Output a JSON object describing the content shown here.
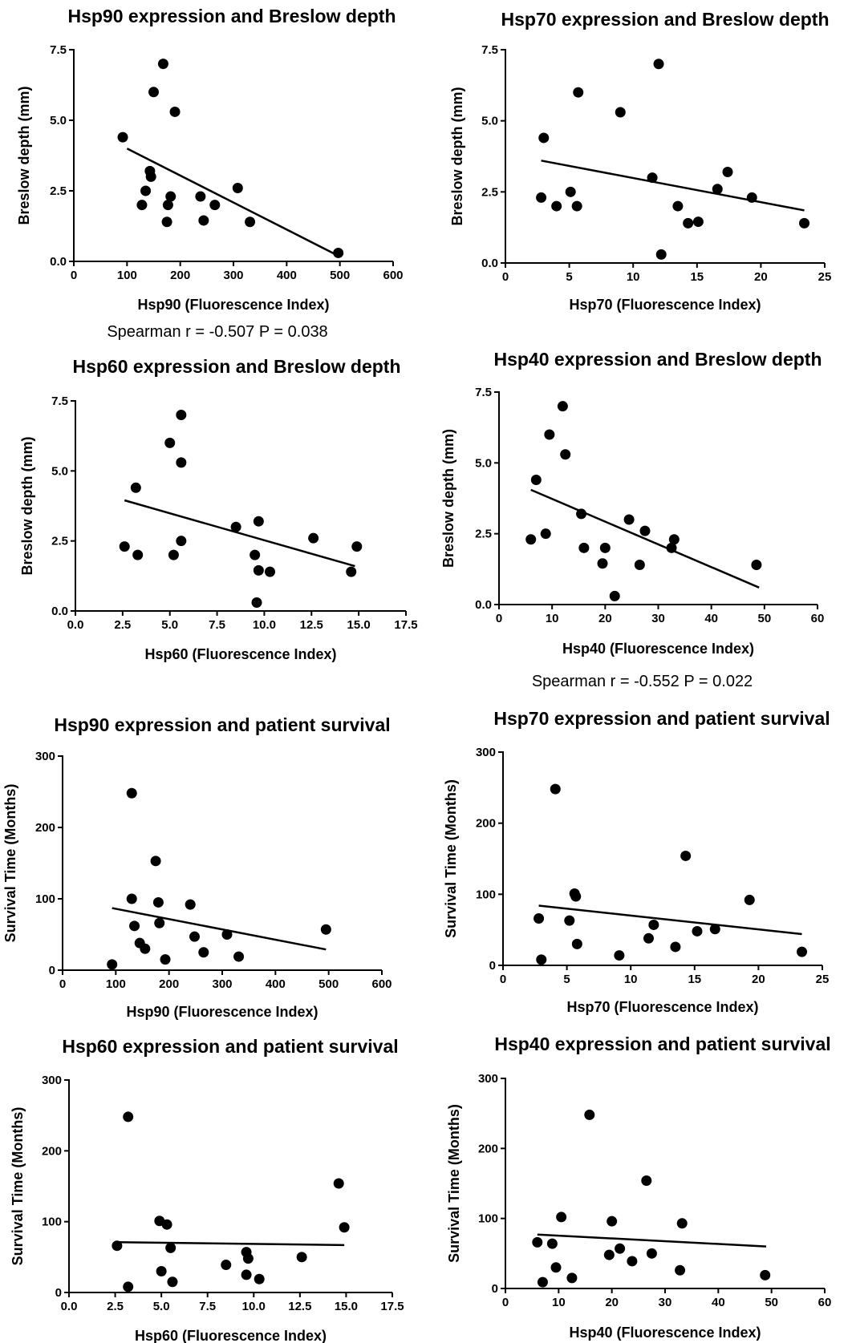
{
  "chart_data": [
    {
      "type": "scatter",
      "title": "Hsp90 expression and Breslow depth",
      "xlabel": "Hsp90 (Fluorescence Index)",
      "ylabel": "Breslow depth (mm)",
      "xlim": [
        0,
        600
      ],
      "ylim": [
        0,
        7.5
      ],
      "xticks": [
        0,
        100,
        200,
        300,
        400,
        500,
        600
      ],
      "yticks": [
        0.0,
        2.5,
        5.0,
        7.5
      ],
      "xtick_labels": [
        "0",
        "100",
        "200",
        "300",
        "400",
        "500",
        "600"
      ],
      "ytick_labels": [
        "0.0",
        "2.5",
        "5.0",
        "7.5"
      ],
      "points": [
        [
          92,
          4.4
        ],
        [
          168,
          7.0
        ],
        [
          150,
          6.0
        ],
        [
          190,
          5.3
        ],
        [
          143,
          3.2
        ],
        [
          145,
          3.0
        ],
        [
          135,
          2.5
        ],
        [
          128,
          2.0
        ],
        [
          182,
          2.3
        ],
        [
          177,
          2.0
        ],
        [
          175,
          1.4
        ],
        [
          238,
          2.3
        ],
        [
          244,
          1.45
        ],
        [
          265,
          2.0
        ],
        [
          308,
          2.6
        ],
        [
          331,
          1.4
        ],
        [
          497,
          0.3
        ]
      ],
      "fit": [
        [
          100,
          4.0
        ],
        [
          497,
          0.2
        ]
      ],
      "annotation": "Spearman r = -0.507 P = 0.038"
    },
    {
      "type": "scatter",
      "title": "Hsp70 expression and Breslow depth",
      "xlabel": "Hsp70 (Fluorescence Index)",
      "ylabel": "Breslow depth (mm)",
      "xlim": [
        0,
        25
      ],
      "ylim": [
        0,
        7.5
      ],
      "xticks": [
        0,
        5,
        10,
        15,
        20,
        25
      ],
      "yticks": [
        0.0,
        2.5,
        5.0,
        7.5
      ],
      "xtick_labels": [
        "0",
        "5",
        "10",
        "15",
        "20",
        "25"
      ],
      "ytick_labels": [
        "0.0",
        "2.5",
        "5.0",
        "7.5"
      ],
      "points": [
        [
          3.0,
          4.4
        ],
        [
          5.7,
          6.0
        ],
        [
          12.0,
          7.0
        ],
        [
          9.0,
          5.3
        ],
        [
          2.8,
          2.3
        ],
        [
          4.0,
          2.0
        ],
        [
          5.1,
          2.5
        ],
        [
          5.6,
          2.0
        ],
        [
          11.5,
          3.0
        ],
        [
          13.5,
          2.0
        ],
        [
          12.2,
          0.3
        ],
        [
          14.3,
          1.4
        ],
        [
          15.1,
          1.45
        ],
        [
          16.6,
          2.6
        ],
        [
          17.4,
          3.2
        ],
        [
          19.3,
          2.3
        ],
        [
          23.4,
          1.4
        ]
      ],
      "fit": [
        [
          2.8,
          3.6
        ],
        [
          23.4,
          1.85
        ]
      ],
      "annotation": ""
    },
    {
      "type": "scatter",
      "title": "Hsp60 expression and Breslow depth",
      "xlabel": "Hsp60 (Fluorescence Index)",
      "ylabel": "Breslow depth (mm)",
      "xlim": [
        0,
        17.5
      ],
      "ylim": [
        0,
        7.5
      ],
      "xticks": [
        0,
        2.5,
        5,
        7.5,
        10,
        12.5,
        15,
        17.5
      ],
      "yticks": [
        0.0,
        2.5,
        5.0,
        7.5
      ],
      "xtick_labels": [
        "0.0",
        "2.5",
        "5.0",
        "7.5",
        "10.0",
        "12.5",
        "15.0",
        "17.5"
      ],
      "ytick_labels": [
        "0.0",
        "2.5",
        "5.0",
        "7.5"
      ],
      "points": [
        [
          3.2,
          4.4
        ],
        [
          5.6,
          7.0
        ],
        [
          5.0,
          6.0
        ],
        [
          5.6,
          5.3
        ],
        [
          2.6,
          2.3
        ],
        [
          3.3,
          2.0
        ],
        [
          5.2,
          2.0
        ],
        [
          5.6,
          2.5
        ],
        [
          8.5,
          3.0
        ],
        [
          9.7,
          3.2
        ],
        [
          9.5,
          2.0
        ],
        [
          9.7,
          1.45
        ],
        [
          10.3,
          1.4
        ],
        [
          9.6,
          0.3
        ],
        [
          12.6,
          2.6
        ],
        [
          14.6,
          1.4
        ],
        [
          14.9,
          2.3
        ]
      ],
      "fit": [
        [
          2.6,
          3.95
        ],
        [
          14.8,
          1.6
        ]
      ],
      "annotation": ""
    },
    {
      "type": "scatter",
      "title": "Hsp40 expression and Breslow depth",
      "xlabel": "Hsp40 (Fluorescence Index)",
      "ylabel": "Breslow depth (mm)",
      "xlim": [
        0,
        60
      ],
      "ylim": [
        0,
        7.5
      ],
      "xticks": [
        0,
        10,
        20,
        30,
        40,
        50,
        60
      ],
      "yticks": [
        0.0,
        2.5,
        5.0,
        7.5
      ],
      "xtick_labels": [
        "0",
        "10",
        "20",
        "30",
        "40",
        "50",
        "60"
      ],
      "ytick_labels": [
        "0.0",
        "2.5",
        "5.0",
        "7.5"
      ],
      "points": [
        [
          7,
          4.4
        ],
        [
          12,
          7.0
        ],
        [
          9.5,
          6.0
        ],
        [
          12.5,
          5.3
        ],
        [
          6,
          2.3
        ],
        [
          8.8,
          2.5
        ],
        [
          15.5,
          3.2
        ],
        [
          16,
          2.0
        ],
        [
          20,
          2.0
        ],
        [
          19.5,
          1.45
        ],
        [
          21.8,
          0.3
        ],
        [
          24.5,
          3.0
        ],
        [
          26.5,
          1.4
        ],
        [
          27.5,
          2.6
        ],
        [
          33,
          2.3
        ],
        [
          32.5,
          2.0
        ],
        [
          48.5,
          1.4
        ]
      ],
      "fit": [
        [
          6,
          4.05
        ],
        [
          49,
          0.6
        ]
      ],
      "annotation": "Spearman r = -0.552 P = 0.022"
    },
    {
      "type": "scatter",
      "title": "Hsp90 expression and patient survival",
      "xlabel": "Hsp90 (Fluorescence Index)",
      "ylabel": "Survival Time (Months)",
      "xlim": [
        0,
        600
      ],
      "ylim": [
        0,
        300
      ],
      "xticks": [
        0,
        100,
        200,
        300,
        400,
        500,
        600
      ],
      "yticks": [
        0,
        100,
        200,
        300
      ],
      "xtick_labels": [
        "0",
        "100",
        "200",
        "300",
        "400",
        "500",
        "600"
      ],
      "ytick_labels": [
        "0",
        "100",
        "200",
        "300"
      ],
      "points": [
        [
          93,
          8
        ],
        [
          130,
          248
        ],
        [
          130,
          100
        ],
        [
          135,
          62
        ],
        [
          145,
          38
        ],
        [
          155,
          30
        ],
        [
          175,
          153
        ],
        [
          180,
          95
        ],
        [
          182,
          66
        ],
        [
          193,
          15
        ],
        [
          240,
          92
        ],
        [
          248,
          47
        ],
        [
          265,
          25
        ],
        [
          309,
          50
        ],
        [
          331,
          19
        ],
        [
          495,
          57
        ]
      ],
      "fit": [
        [
          93,
          87
        ],
        [
          495,
          29
        ]
      ],
      "annotation": ""
    },
    {
      "type": "scatter",
      "title": "Hsp70 expression and patient survival",
      "xlabel": "Hsp70 (Fluorescence Index)",
      "ylabel": "Survival Time (Months)",
      "xlim": [
        0,
        25
      ],
      "ylim": [
        0,
        300
      ],
      "xticks": [
        0,
        5,
        10,
        15,
        20,
        25
      ],
      "yticks": [
        0,
        100,
        200,
        300
      ],
      "xtick_labels": [
        "0",
        "5",
        "10",
        "15",
        "20",
        "25"
      ],
      "ytick_labels": [
        "0",
        "100",
        "200",
        "300"
      ],
      "points": [
        [
          2.8,
          66
        ],
        [
          3.0,
          8
        ],
        [
          4.1,
          248
        ],
        [
          5.2,
          63
        ],
        [
          5.6,
          101
        ],
        [
          5.7,
          97
        ],
        [
          5.8,
          30
        ],
        [
          9.1,
          14
        ],
        [
          11.4,
          38
        ],
        [
          11.8,
          57
        ],
        [
          13.5,
          26
        ],
        [
          14.3,
          154
        ],
        [
          15.2,
          48
        ],
        [
          16.6,
          51
        ],
        [
          19.3,
          92
        ],
        [
          23.4,
          19
        ]
      ],
      "fit": [
        [
          2.8,
          84
        ],
        [
          23.4,
          44
        ]
      ],
      "annotation": ""
    },
    {
      "type": "scatter",
      "title": "Hsp60 expression and patient survival",
      "xlabel": "Hsp60 (Fluorescence Index)",
      "ylabel": "Survival Time (Months)",
      "xlim": [
        0,
        17.5
      ],
      "ylim": [
        0,
        300
      ],
      "xticks": [
        0,
        2.5,
        5,
        7.5,
        10,
        12.5,
        15,
        17.5
      ],
      "yticks": [
        0,
        100,
        200,
        300
      ],
      "xtick_labels": [
        "0.0",
        "2.5",
        "5.0",
        "7.5",
        "10.0",
        "12.5",
        "15.0",
        "17.5"
      ],
      "ytick_labels": [
        "0",
        "100",
        "200",
        "300"
      ],
      "points": [
        [
          2.6,
          66
        ],
        [
          3.2,
          248
        ],
        [
          3.2,
          8
        ],
        [
          4.9,
          101
        ],
        [
          5.3,
          96
        ],
        [
          5.0,
          30
        ],
        [
          5.5,
          63
        ],
        [
          5.6,
          15
        ],
        [
          8.5,
          39
        ],
        [
          9.6,
          57
        ],
        [
          9.6,
          25
        ],
        [
          9.7,
          48
        ],
        [
          10.3,
          19
        ],
        [
          12.6,
          50
        ],
        [
          14.6,
          154
        ],
        [
          14.9,
          92
        ]
      ],
      "fit": [
        [
          2.6,
          71
        ],
        [
          14.9,
          67
        ]
      ],
      "annotation": ""
    },
    {
      "type": "scatter",
      "title": "Hsp40 expression and patient survival",
      "xlabel": "Hsp40 (Fluorescence Index)",
      "ylabel": "Survival Time (Months)",
      "xlim": [
        0,
        60
      ],
      "ylim": [
        0,
        300
      ],
      "xticks": [
        0,
        10,
        20,
        30,
        40,
        50,
        60
      ],
      "yticks": [
        0,
        100,
        200,
        300
      ],
      "xtick_labels": [
        "0",
        "10",
        "20",
        "30",
        "40",
        "50",
        "60"
      ],
      "ytick_labels": [
        "0",
        "100",
        "200",
        "300"
      ],
      "points": [
        [
          6,
          66
        ],
        [
          7,
          9
        ],
        [
          8.8,
          64
        ],
        [
          9.5,
          30
        ],
        [
          10.5,
          102
        ],
        [
          12.5,
          15
        ],
        [
          15.8,
          248
        ],
        [
          19.5,
          48
        ],
        [
          20,
          96
        ],
        [
          21.5,
          57
        ],
        [
          23.8,
          39
        ],
        [
          26.5,
          154
        ],
        [
          27.5,
          50
        ],
        [
          32.8,
          26
        ],
        [
          33.2,
          93
        ],
        [
          48.8,
          19
        ]
      ],
      "fit": [
        [
          6,
          77
        ],
        [
          49,
          60
        ]
      ],
      "annotation": ""
    }
  ]
}
